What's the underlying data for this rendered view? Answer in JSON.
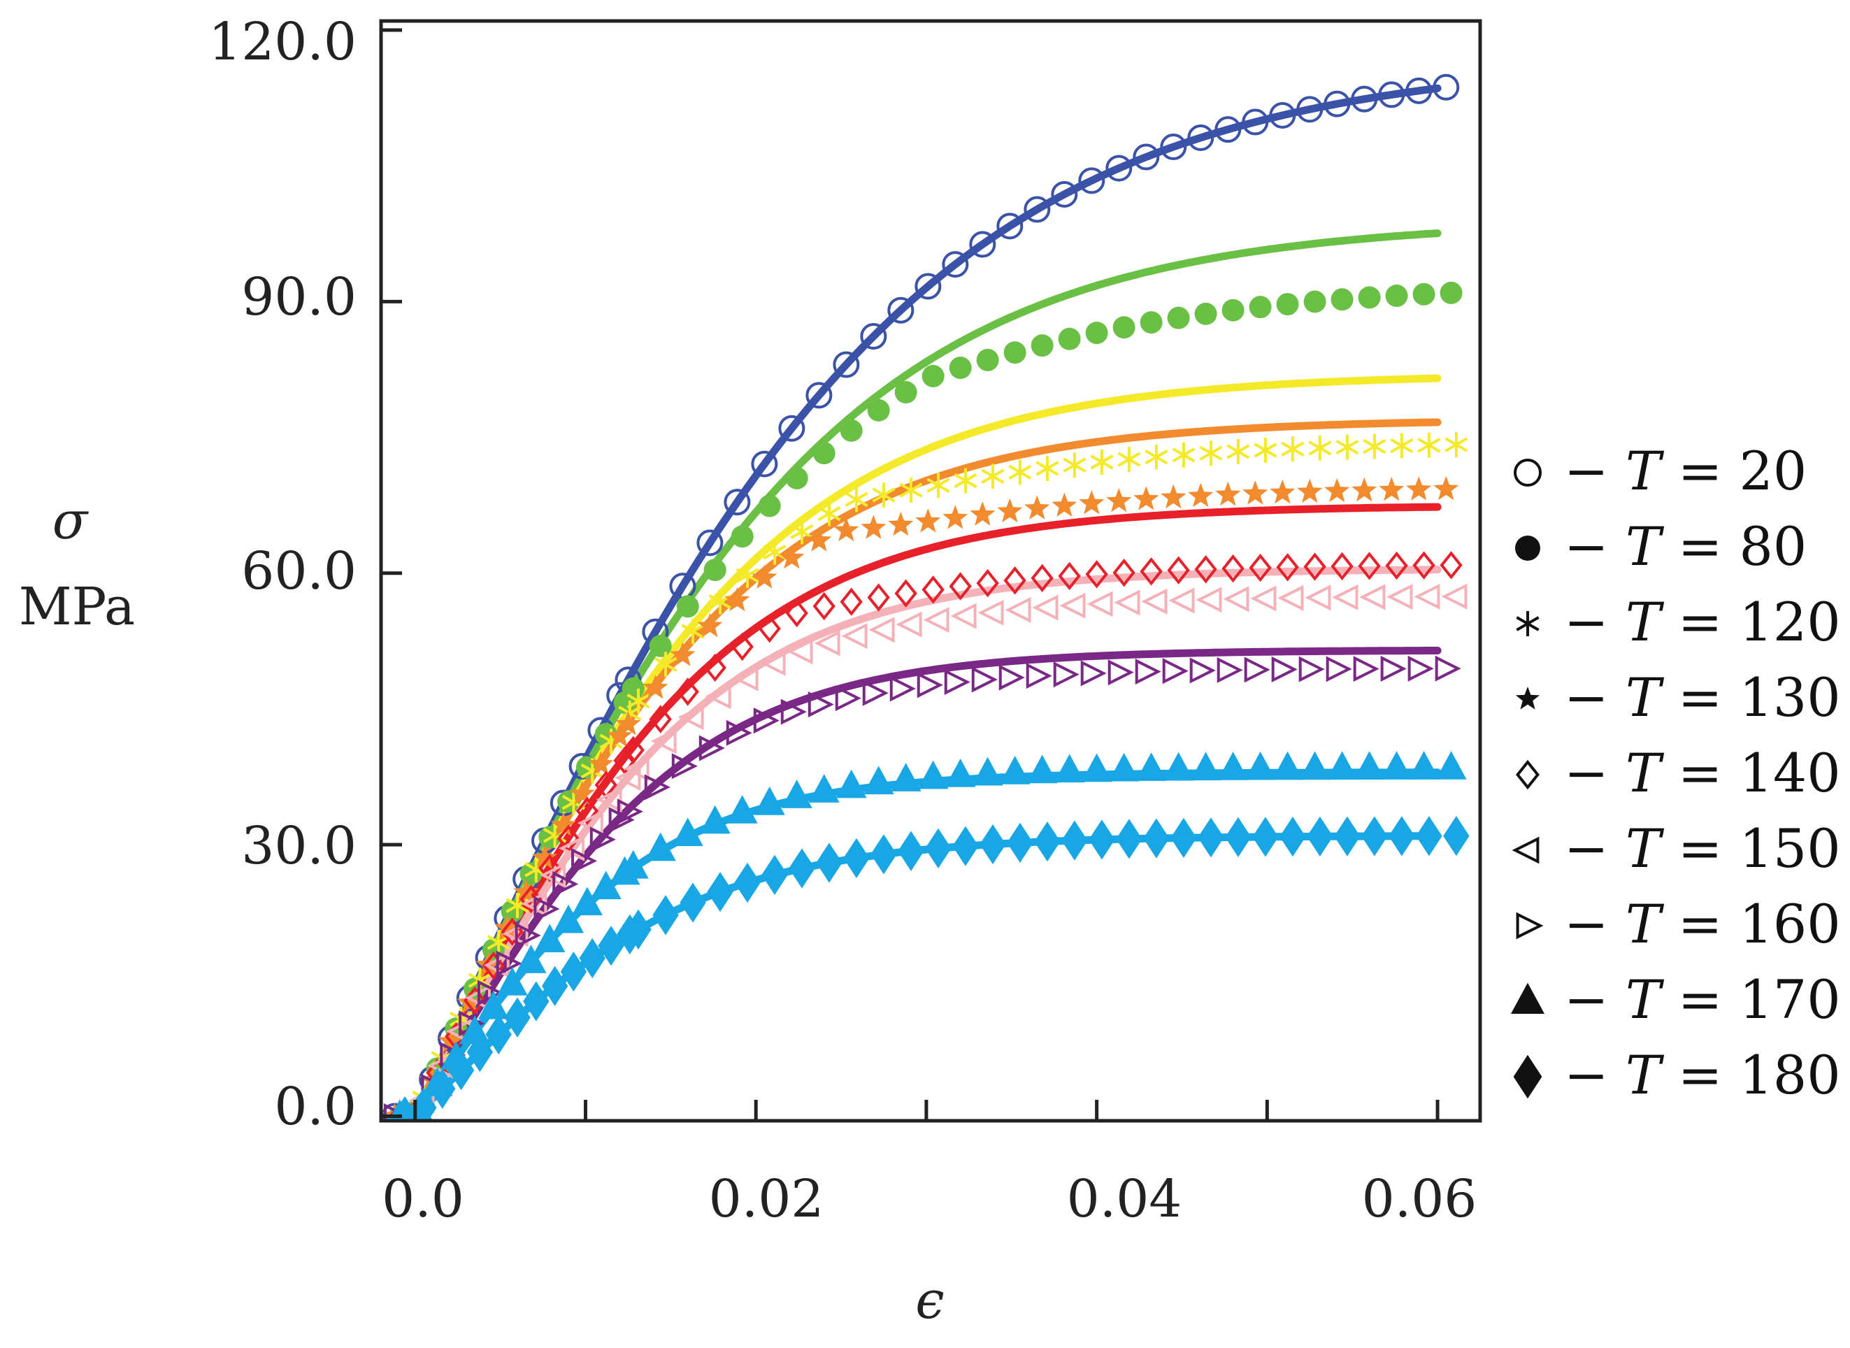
{
  "chart_data": {
    "type": "scatter",
    "title": "",
    "xlabel": "ϵ",
    "ylabel": "σ",
    "ylabel_unit": "MPa",
    "xlim": [
      -0.002,
      0.0625
    ],
    "ylim": [
      -0.5,
      121
    ],
    "x_ticks": [
      0.0,
      0.02,
      0.04,
      0.06
    ],
    "x_tick_labels": [
      "0.0",
      "0.02",
      "0.04",
      "0.06"
    ],
    "y_ticks": [
      0,
      30,
      60,
      90,
      120
    ],
    "y_tick_labels": [
      "0.0",
      "30.0",
      "60.0",
      "90.0",
      "120.0"
    ],
    "grid": false,
    "legend_position": "right",
    "series": [
      {
        "name": "T = 20",
        "T": "20",
        "marker": "circle-open",
        "color": "#3a52a8",
        "modulus": 4100,
        "peak": 117,
        "plateau": 117,
        "fit_plateau": 117
      },
      {
        "name": "T = 80",
        "T": "80",
        "marker": "circle-filled",
        "color": "#6abf45",
        "modulus": 4050,
        "peak": 95,
        "plateau": 92,
        "fit_plateau": 99
      },
      {
        "name": "T = 120",
        "T": "120",
        "marker": "asterisk",
        "color": "#f5ea2a",
        "modulus": 4000,
        "peak": 79,
        "plateau": 74.5,
        "fit_plateau": 82
      },
      {
        "name": "T = 130",
        "T": "130",
        "marker": "star",
        "color": "#f28a2e",
        "modulus": 3950,
        "peak": 75,
        "plateau": 69.5,
        "fit_plateau": 77
      },
      {
        "name": "T = 140",
        "T": "140",
        "marker": "diamond-open",
        "color": "#e8202a",
        "modulus": 3700,
        "peak": 65,
        "plateau": 61,
        "fit_plateau": 67.5
      },
      {
        "name": "T = 150",
        "T": "150",
        "marker": "triangle-left",
        "color": "#f4b2b8",
        "modulus": 3500,
        "peak": 59,
        "plateau": 57.5,
        "fit_plateau": 60.5
      },
      {
        "name": "T = 160",
        "T": "160",
        "marker": "triangle-right",
        "color": "#7a2885",
        "modulus": 3250,
        "peak": 50.5,
        "plateau": 49.5,
        "fit_plateau": 51.5
      },
      {
        "name": "T = 170",
        "T": "170",
        "marker": "triangle-filled",
        "color": "#19a6e5",
        "modulus": 2700,
        "peak": 38.5,
        "plateau": 38.5,
        "fit_plateau": 38
      },
      {
        "name": "T = 180",
        "T": "180",
        "marker": "diamond-filled",
        "color": "#19a6e5",
        "modulus": 1900,
        "peak": 31,
        "plateau": 31,
        "fit_plateau": 31
      }
    ]
  }
}
